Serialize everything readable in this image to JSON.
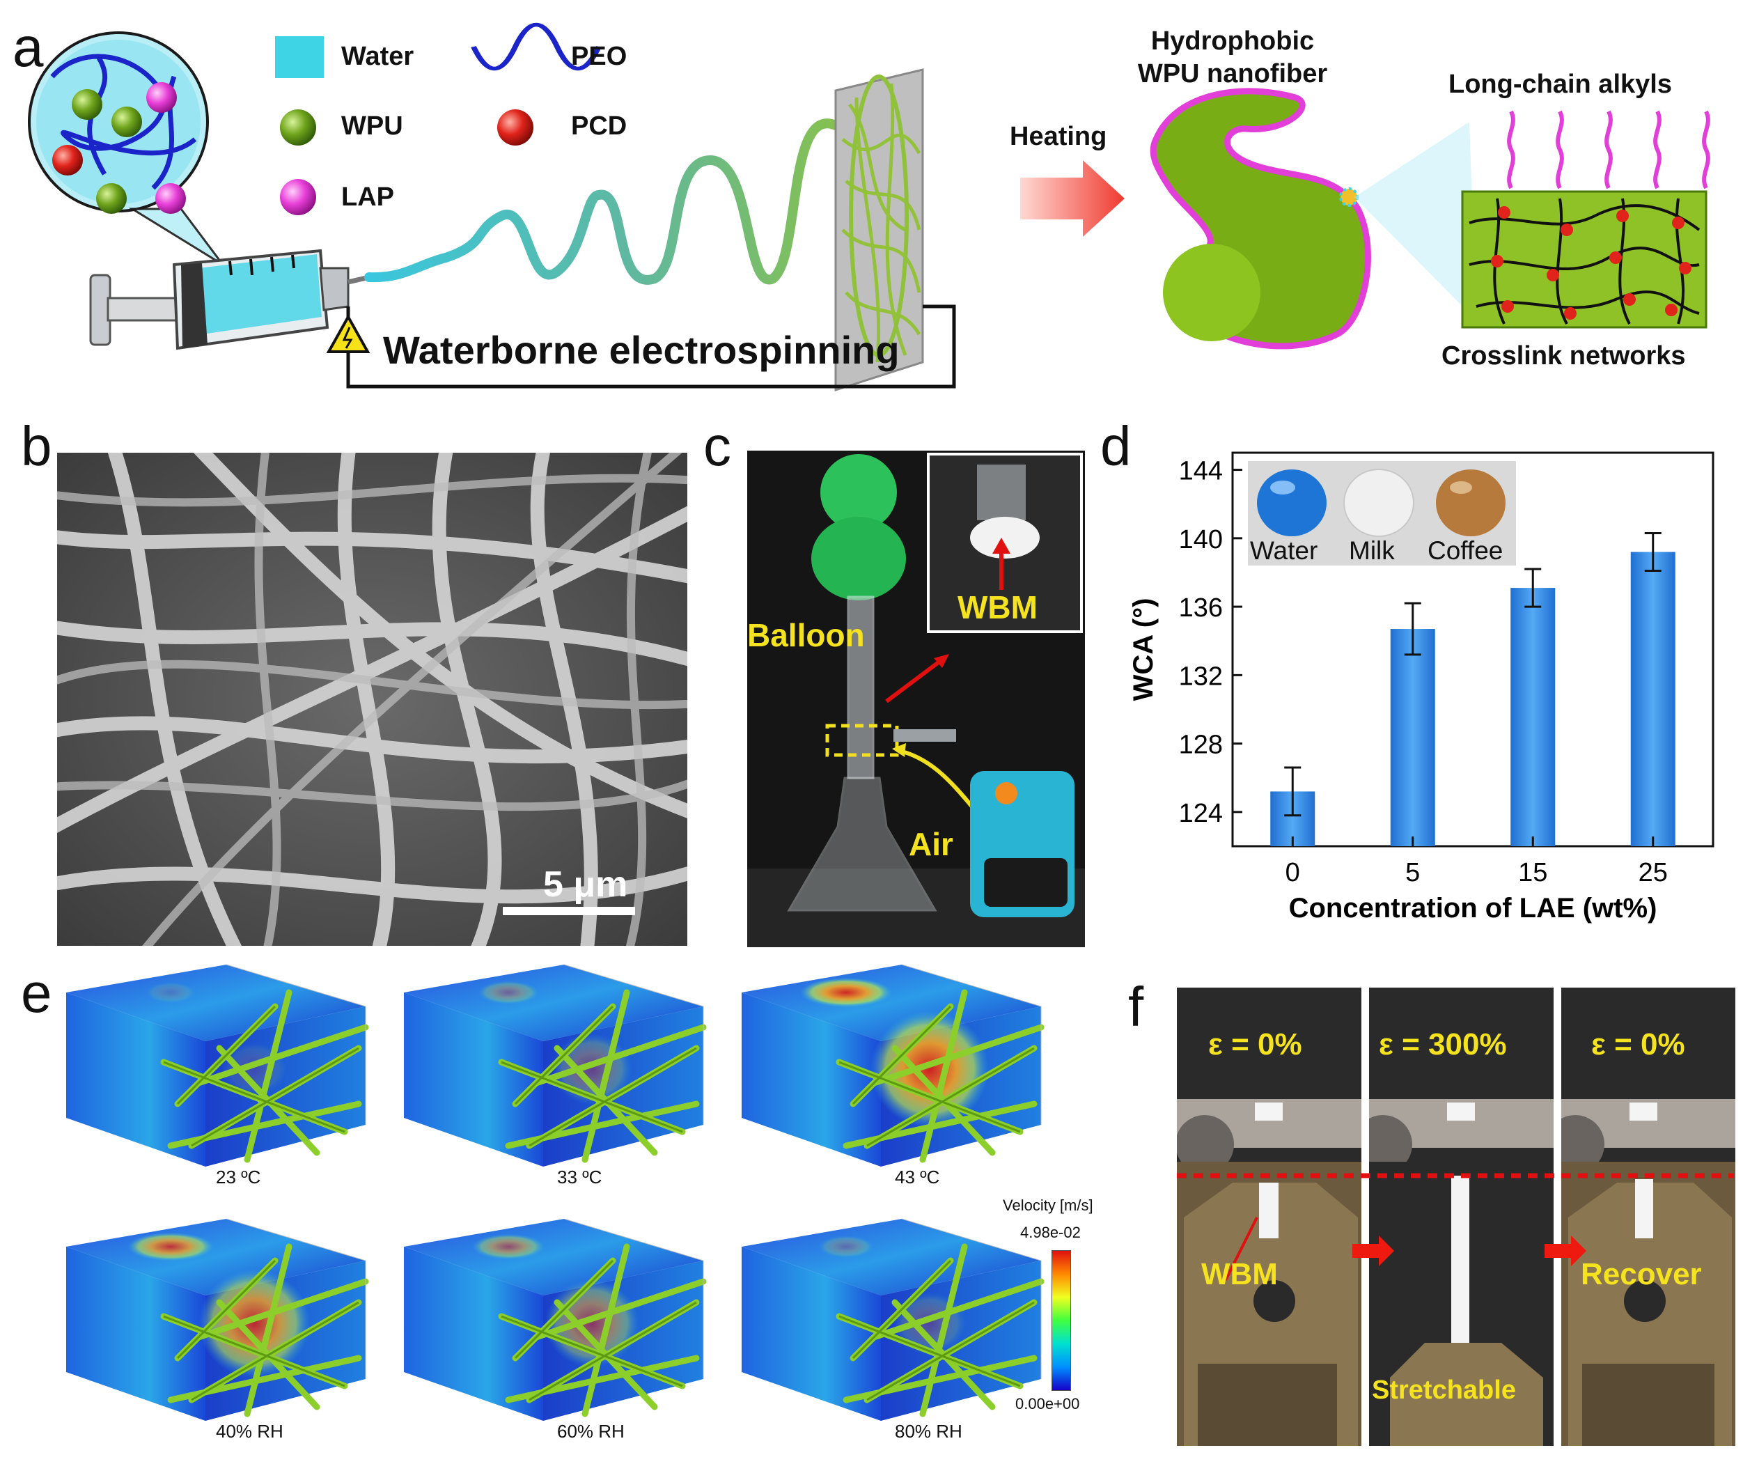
{
  "panels": {
    "a": "a",
    "b": "b",
    "c": "c",
    "d": "d",
    "e": "e",
    "f": "f"
  },
  "panel_a": {
    "legend": {
      "water": "Water",
      "peo": "PEO",
      "wpu": "WPU",
      "pcd": "PCD",
      "lap": "LAP"
    },
    "process_label": "Waterborne electrospinning",
    "heating_label": "Heating",
    "nanofiber_label_1": "Hydrophobic",
    "nanofiber_label_2": "WPU nanofiber",
    "alkyl_label": "Long-chain alkyls",
    "network_label": "Crosslink networks",
    "colors": {
      "water": "#3fd3e6",
      "wpu": "#6fa41c",
      "pcd": "#e0231b",
      "lap": "#e83fd8",
      "peo": "#1b24c9",
      "fiber": "#8fbf2a"
    }
  },
  "panel_b": {
    "scale_bar": "5 μm"
  },
  "panel_c": {
    "balloon": "Balloon",
    "wbm": "WBM",
    "air": "Air"
  },
  "chart_data": {
    "type": "bar",
    "categories": [
      "0",
      "5",
      "15",
      "25"
    ],
    "values": [
      125.2,
      134.7,
      137.1,
      139.2
    ],
    "errors": [
      1.4,
      1.5,
      1.1,
      1.1
    ],
    "xlabel": "Concentration of LAE (wt%)",
    "ylabel": "WCA (°)",
    "ylim": [
      122,
      145
    ],
    "yticks": [
      "124",
      "128",
      "132",
      "136",
      "140",
      "144"
    ],
    "inset_labels": [
      "Water",
      "Milk",
      "Coffee"
    ],
    "bar_color": "#3a8fe0"
  },
  "panel_e": {
    "captions": [
      "23 ºC",
      "33 ºC",
      "43 ºC",
      "40% RH",
      "60% RH",
      "80% RH"
    ],
    "colorbar_title": "Velocity [m/s]",
    "colorbar_max": "4.98e-02",
    "colorbar_min": "0.00e+00"
  },
  "panel_f": {
    "strain_labels": [
      "ε = 0%",
      "ε = 300%",
      "ε = 0%"
    ],
    "photo_labels": [
      "WBM",
      "Stretchable",
      "Recover"
    ]
  }
}
